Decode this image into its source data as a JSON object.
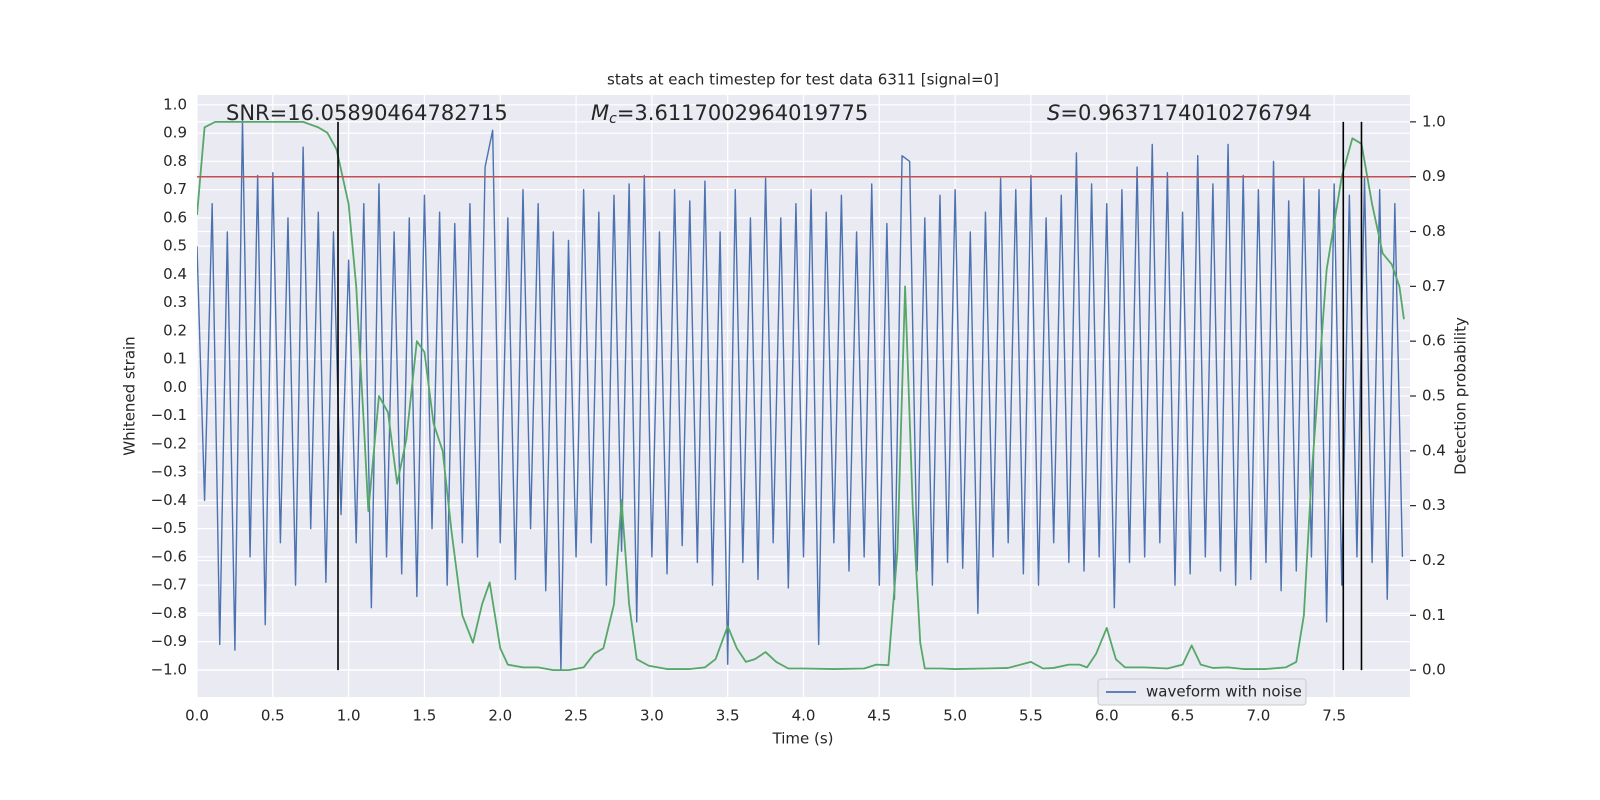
{
  "chart_data": {
    "type": "line",
    "title": "stats at each timestep for test data 6311 [signal=0]",
    "xlabel": "Time (s)",
    "ylabel": "Whitened strain",
    "y2label": "Detection probability",
    "annotations": [
      {
        "text": "SNR=16.05890464782715"
      },
      {
        "symbol": "M",
        "subscript": "c",
        "text": "=3.6117002964019775"
      },
      {
        "symbol": "S",
        "text": "=0.9637174010276794"
      }
    ],
    "xlim": [
      0,
      8
    ],
    "ylim": [
      -1.096,
      1.035
    ],
    "y2lim": [
      -0.049,
      1.049
    ],
    "xticks": [
      {
        "value": 0,
        "label": "0.0"
      },
      {
        "value": 0.5,
        "label": "0.5"
      },
      {
        "value": 1,
        "label": "1.0"
      },
      {
        "value": 1.5,
        "label": "1.5"
      },
      {
        "value": 2,
        "label": "2.0"
      },
      {
        "value": 2.5,
        "label": "2.5"
      },
      {
        "value": 3,
        "label": "3.0"
      },
      {
        "value": 3.5,
        "label": "3.5"
      },
      {
        "value": 4,
        "label": "4.0"
      },
      {
        "value": 4.5,
        "label": "4.5"
      },
      {
        "value": 5,
        "label": "5.0"
      },
      {
        "value": 5.5,
        "label": "5.5"
      },
      {
        "value": 6,
        "label": "6.0"
      },
      {
        "value": 6.5,
        "label": "6.5"
      },
      {
        "value": 7,
        "label": "7.0"
      },
      {
        "value": 7.5,
        "label": "7.5"
      }
    ],
    "yticks": [
      {
        "value": 1,
        "label": "1.0"
      },
      {
        "value": 0.9,
        "label": "0.9"
      },
      {
        "value": 0.8,
        "label": "0.8"
      },
      {
        "value": 0.7,
        "label": "0.7"
      },
      {
        "value": 0.6,
        "label": "0.6"
      },
      {
        "value": 0.5,
        "label": "0.5"
      },
      {
        "value": 0.4,
        "label": "0.4"
      },
      {
        "value": 0.3,
        "label": "0.3"
      },
      {
        "value": 0.2,
        "label": "0.2"
      },
      {
        "value": 0.1,
        "label": "0.1"
      },
      {
        "value": 0,
        "label": "0.0"
      },
      {
        "value": -0.1,
        "label": "−0.1"
      },
      {
        "value": -0.2,
        "label": "−0.2"
      },
      {
        "value": -0.3,
        "label": "−0.3"
      },
      {
        "value": -0.4,
        "label": "−0.4"
      },
      {
        "value": -0.5,
        "label": "−0.5"
      },
      {
        "value": -0.6,
        "label": "−0.6"
      },
      {
        "value": -0.7,
        "label": "−0.7"
      },
      {
        "value": -0.8,
        "label": "−0.8"
      },
      {
        "value": -0.9,
        "label": "−0.9"
      },
      {
        "value": -1,
        "label": "−1.0"
      }
    ],
    "y2ticks": [
      {
        "value": 0,
        "label": "0.0"
      },
      {
        "value": 0.1,
        "label": "0.1"
      },
      {
        "value": 0.2,
        "label": "0.2"
      },
      {
        "value": 0.3,
        "label": "0.3"
      },
      {
        "value": 0.4,
        "label": "0.4"
      },
      {
        "value": 0.5,
        "label": "0.5"
      },
      {
        "value": 0.6,
        "label": "0.6"
      },
      {
        "value": 0.7,
        "label": "0.7"
      },
      {
        "value": 0.8,
        "label": "0.8"
      },
      {
        "value": 0.9,
        "label": "0.9"
      },
      {
        "value": 1,
        "label": "1.0"
      }
    ],
    "grid": true,
    "legend": "lower right",
    "threshold": 0.9,
    "threshold_color": "#c44e52",
    "vlines": [
      0.93,
      7.56,
      7.68
    ],
    "vline_color": "#000000",
    "series": [
      {
        "name": "waveform with noise",
        "color": "#4c72b0",
        "x": [
          0,
          0.05,
          0.1,
          0.15,
          0.2,
          0.25,
          0.3,
          0.35,
          0.4,
          0.45,
          0.5,
          0.55,
          0.6,
          0.65,
          0.7,
          0.75,
          0.8,
          0.85,
          0.9,
          0.95,
          1,
          1.05,
          1.1,
          1.15,
          1.2,
          1.25,
          1.3,
          1.35,
          1.4,
          1.45,
          1.5,
          1.55,
          1.6,
          1.65,
          1.7,
          1.75,
          1.8,
          1.85,
          1.9,
          1.95,
          2,
          2.05,
          2.1,
          2.15,
          2.2,
          2.25,
          2.3,
          2.35,
          2.4,
          2.45,
          2.5,
          2.55,
          2.6,
          2.65,
          2.7,
          2.75,
          2.8,
          2.85,
          2.9,
          2.95,
          3,
          3.05,
          3.1,
          3.15,
          3.2,
          3.25,
          3.3,
          3.35,
          3.4,
          3.45,
          3.5,
          3.55,
          3.6,
          3.65,
          3.7,
          3.75,
          3.8,
          3.85,
          3.9,
          3.95,
          4,
          4.05,
          4.1,
          4.15,
          4.2,
          4.25,
          4.3,
          4.35,
          4.4,
          4.45,
          4.5,
          4.55,
          4.6,
          4.65,
          4.7,
          4.75,
          4.8,
          4.85,
          4.9,
          4.95,
          5,
          5.05,
          5.1,
          5.15,
          5.2,
          5.25,
          5.3,
          5.35,
          5.4,
          5.45,
          5.5,
          5.55,
          5.6,
          5.65,
          5.7,
          5.75,
          5.8,
          5.85,
          5.9,
          5.95,
          6,
          6.05,
          6.1,
          6.15,
          6.2,
          6.25,
          6.3,
          6.35,
          6.4,
          6.45,
          6.5,
          6.55,
          6.6,
          6.65,
          6.7,
          6.75,
          6.8,
          6.85,
          6.9,
          6.95,
          7,
          7.05,
          7.1,
          7.15,
          7.2,
          7.25,
          7.3,
          7.35,
          7.4,
          7.45,
          7.5,
          7.55,
          7.6,
          7.65,
          7.7,
          7.75,
          7.8,
          7.85,
          7.9,
          7.95
        ],
        "values": [
          0.5,
          -0.4,
          0.65,
          -0.91,
          0.55,
          -0.93,
          0.95,
          -0.6,
          0.75,
          -0.84,
          0.76,
          -0.55,
          0.6,
          -0.7,
          0.85,
          -0.5,
          0.62,
          -0.69,
          0.55,
          -0.45,
          0.45,
          -0.55,
          0.65,
          -0.78,
          0.72,
          -0.6,
          0.55,
          -0.66,
          0.6,
          -0.74,
          0.68,
          -0.5,
          0.62,
          -0.7,
          0.58,
          -0.55,
          0.65,
          -0.6,
          0.78,
          0.91,
          -0.55,
          0.6,
          -0.68,
          0.7,
          -0.5,
          0.65,
          -0.72,
          0.55,
          -1.0,
          0.52,
          -0.6,
          0.7,
          -0.55,
          0.62,
          -0.7,
          0.68,
          -0.58,
          0.72,
          -0.83,
          0.75,
          -0.6,
          0.55,
          -0.66,
          0.7,
          -0.56,
          0.66,
          -0.62,
          0.73,
          -0.7,
          0.55,
          -0.98,
          0.7,
          -0.62,
          0.6,
          -0.68,
          0.74,
          -0.55,
          0.6,
          -0.71,
          0.65,
          -0.6,
          0.7,
          -0.91,
          0.62,
          -0.55,
          0.68,
          -0.65,
          0.55,
          -0.6,
          0.72,
          -0.7,
          0.58,
          -0.75,
          0.82,
          0.8,
          -0.65,
          0.6,
          -0.7,
          0.68,
          -0.62,
          0.7,
          -0.64,
          0.55,
          -0.8,
          0.62,
          -0.6,
          0.74,
          -0.55,
          0.7,
          -0.66,
          0.75,
          -0.7,
          0.6,
          -0.55,
          0.68,
          -0.62,
          0.83,
          -0.65,
          0.72,
          -0.6,
          0.65,
          -0.78,
          0.7,
          -0.62,
          0.78,
          -0.6,
          0.86,
          -0.55,
          0.76,
          -0.7,
          0.62,
          -0.66,
          0.82,
          -0.6,
          0.72,
          -0.65,
          0.86,
          -0.7,
          0.75,
          -0.68,
          0.7,
          -0.62,
          0.8,
          -0.72,
          0.66,
          -0.65,
          0.74,
          -0.6,
          0.7,
          -0.83,
          0.72,
          -0.7,
          0.68,
          -0.6,
          0.74,
          -0.62,
          0.7,
          -0.75,
          0.65,
          -0.6
        ]
      },
      {
        "color": "#55a868",
        "axis": "y2",
        "x": [
          0,
          0.05,
          0.12,
          0.2,
          0.7,
          0.8,
          0.86,
          0.92,
          1.0,
          1.05,
          1.1,
          1.13,
          1.2,
          1.26,
          1.32,
          1.38,
          1.45,
          1.5,
          1.56,
          1.62,
          1.68,
          1.75,
          1.82,
          1.88,
          1.93,
          2.0,
          2.05,
          2.15,
          2.25,
          2.35,
          2.45,
          2.55,
          2.62,
          2.68,
          2.75,
          2.8,
          2.85,
          2.9,
          2.98,
          3.1,
          3.25,
          3.35,
          3.42,
          3.5,
          3.56,
          3.62,
          3.68,
          3.75,
          3.82,
          3.9,
          4.0,
          4.2,
          4.4,
          4.48,
          4.56,
          4.62,
          4.67,
          4.72,
          4.77,
          4.8,
          4.9,
          5.0,
          5.2,
          5.35,
          5.5,
          5.58,
          5.65,
          5.75,
          5.82,
          5.87,
          5.93,
          6.0,
          6.06,
          6.12,
          6.25,
          6.4,
          6.5,
          6.56,
          6.62,
          6.7,
          6.8,
          6.9,
          7.05,
          7.18,
          7.25,
          7.3,
          7.35,
          7.45,
          7.55,
          7.62,
          7.68,
          7.75,
          7.82,
          7.88,
          7.93,
          7.96
        ],
        "values": [
          0.83,
          0.99,
          1.0,
          1.0,
          1.0,
          0.99,
          0.98,
          0.95,
          0.85,
          0.7,
          0.45,
          0.29,
          0.5,
          0.47,
          0.34,
          0.42,
          0.6,
          0.58,
          0.45,
          0.4,
          0.25,
          0.1,
          0.05,
          0.12,
          0.16,
          0.04,
          0.01,
          0.005,
          0.005,
          0.0,
          0.0,
          0.005,
          0.03,
          0.04,
          0.12,
          0.31,
          0.12,
          0.02,
          0.008,
          0.002,
          0.002,
          0.005,
          0.02,
          0.08,
          0.04,
          0.015,
          0.02,
          0.033,
          0.015,
          0.003,
          0.003,
          0.002,
          0.003,
          0.01,
          0.009,
          0.22,
          0.7,
          0.3,
          0.05,
          0.003,
          0.003,
          0.002,
          0.003,
          0.004,
          0.015,
          0.003,
          0.004,
          0.01,
          0.01,
          0.005,
          0.03,
          0.077,
          0.02,
          0.005,
          0.005,
          0.003,
          0.01,
          0.045,
          0.01,
          0.004,
          0.005,
          0.002,
          0.002,
          0.005,
          0.015,
          0.1,
          0.35,
          0.73,
          0.9,
          0.97,
          0.96,
          0.85,
          0.76,
          0.74,
          0.7,
          0.64
        ]
      }
    ]
  }
}
